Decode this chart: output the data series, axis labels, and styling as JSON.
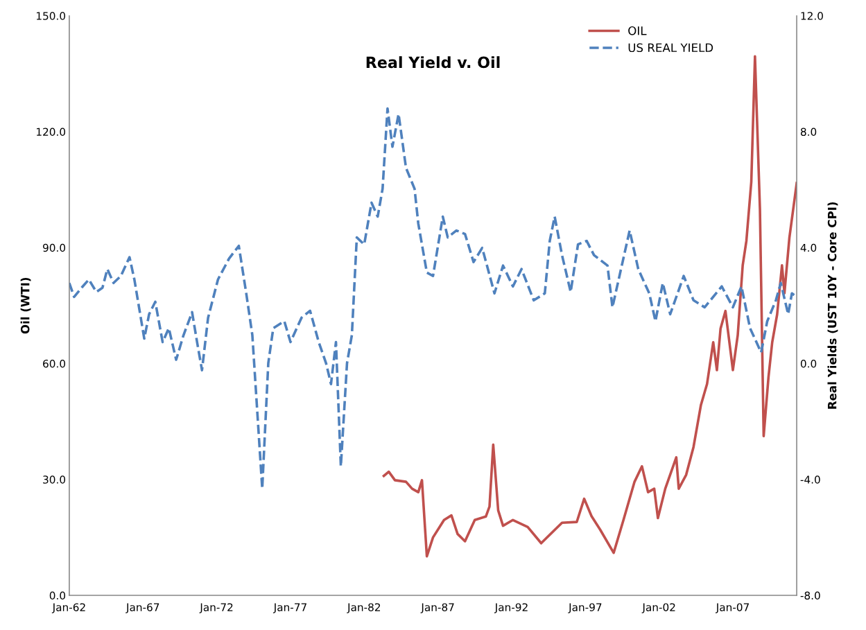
{
  "chart_data": {
    "type": "line",
    "title": "Real Yield v. Oil",
    "ylabel": "Oil (WTI)",
    "y2label": "Real Yields (UST 10Y - Core CPI)",
    "xlim": [
      "1962-01",
      "2011-05"
    ],
    "xticks": [
      {
        "value": "1962-01",
        "label": "Jan-62"
      },
      {
        "value": "1967-01",
        "label": "Jan-67"
      },
      {
        "value": "1972-01",
        "label": "Jan-72"
      },
      {
        "value": "1977-01",
        "label": "Jan-77"
      },
      {
        "value": "1982-01",
        "label": "Jan-82"
      },
      {
        "value": "1987-01",
        "label": "Jan-87"
      },
      {
        "value": "1992-01",
        "label": "Jan-92"
      },
      {
        "value": "1997-01",
        "label": "Jan-97"
      },
      {
        "value": "2002-01",
        "label": "Jan-02"
      },
      {
        "value": "2007-01",
        "label": "Jan-07"
      }
    ],
    "ylim": [
      0,
      150
    ],
    "yticks": [
      {
        "value": 0,
        "label": "0.0"
      },
      {
        "value": 30,
        "label": "30.0"
      },
      {
        "value": 60,
        "label": "60.0"
      },
      {
        "value": 90,
        "label": "90.0"
      },
      {
        "value": 120,
        "label": "120.0"
      },
      {
        "value": 150,
        "label": "150.0"
      }
    ],
    "y2lim": [
      -8,
      12
    ],
    "y2ticks": [
      {
        "value": -8,
        "label": "-8.0"
      },
      {
        "value": -4,
        "label": "-4.0"
      },
      {
        "value": 0,
        "label": "0.0"
      },
      {
        "value": 4,
        "label": "4.0"
      },
      {
        "value": 8,
        "label": "8.0"
      },
      {
        "value": 12,
        "label": "12.0"
      }
    ],
    "legend": "top right",
    "grid": false,
    "series": [
      {
        "name": "OIL",
        "color": "#c0504d",
        "line_style": "solid",
        "x": [
          "1983-05",
          "1983-09",
          "1984-02",
          "1984-11",
          "1985-04",
          "1985-09",
          "1985-12",
          "1986-04",
          "1986-09",
          "1987-06",
          "1987-12",
          "1988-05",
          "1988-11",
          "1989-07",
          "1990-04",
          "1990-07",
          "1990-10",
          "1991-02",
          "1991-06",
          "1992-02",
          "1993-02",
          "1994-01",
          "1995-06",
          "1996-06",
          "1996-12",
          "1997-06",
          "1998-01",
          "1998-12",
          "1999-08",
          "2000-05",
          "2000-11",
          "2001-04",
          "2001-09",
          "2001-12",
          "2002-06",
          "2003-03",
          "2003-05",
          "2003-11",
          "2004-05",
          "2004-11",
          "2005-04",
          "2005-09",
          "2005-12",
          "2006-03",
          "2006-07",
          "2007-01",
          "2007-05",
          "2007-09",
          "2007-12",
          "2008-04",
          "2008-07",
          "2008-11",
          "2009-02",
          "2009-06",
          "2009-09",
          "2010-01",
          "2010-05",
          "2010-07",
          "2010-11",
          "2011-05"
        ],
        "values": [
          30.9,
          32,
          29.8,
          29.4,
          27.6,
          26.7,
          29.8,
          10.1,
          15,
          19.5,
          20.7,
          15.9,
          14,
          19.5,
          20.4,
          23,
          39,
          22,
          18,
          19.5,
          17.7,
          13.5,
          18.8,
          19,
          25,
          20.5,
          17,
          11,
          19.5,
          29.4,
          33.4,
          26.7,
          27.6,
          20,
          27.6,
          35.7,
          27.6,
          31.2,
          38.4,
          49.3,
          54.7,
          65.5,
          58.3,
          69,
          73.6,
          58.3,
          67.3,
          85.4,
          91.7,
          107,
          139.5,
          100,
          41.2,
          56.5,
          65.5,
          72.7,
          85.4,
          78.2,
          92.6,
          106.7
        ]
      },
      {
        "name": "US REAL YIELD",
        "color": "#4f81bd",
        "line_style": "dashed",
        "axis": "y2",
        "x": [
          "1962-01",
          "1962-05",
          "1962-12",
          "1963-05",
          "1963-11",
          "1964-04",
          "1964-08",
          "1965-01",
          "1965-07",
          "1966-02",
          "1966-06",
          "1967-02",
          "1967-06",
          "1967-11",
          "1968-05",
          "1968-10",
          "1969-04",
          "1969-10",
          "1970-05",
          "1970-09",
          "1971-01",
          "1971-06",
          "1972-02",
          "1972-11",
          "1973-07",
          "1974-01",
          "1974-06",
          "1975-02",
          "1975-07",
          "1975-11",
          "1976-08",
          "1977-01",
          "1977-10",
          "1978-05",
          "1978-12",
          "1979-06",
          "1979-10",
          "1980-02",
          "1980-06",
          "1980-11",
          "1981-03",
          "1981-07",
          "1982-01",
          "1982-07",
          "1982-12",
          "1983-04",
          "1983-08",
          "1983-12",
          "1984-05",
          "1984-11",
          "1985-06",
          "1985-09",
          "1986-04",
          "1986-09",
          "1987-05",
          "1987-09",
          "1988-04",
          "1988-11",
          "1989-06",
          "1990-01",
          "1990-11",
          "1991-06",
          "1992-02",
          "1992-09",
          "1993-07",
          "1994-04",
          "1994-08",
          "1994-12",
          "1995-06",
          "1996-01",
          "1996-07",
          "1997-02",
          "1997-08",
          "1998-07",
          "1998-11",
          "1999-06",
          "2000-01",
          "2000-08",
          "2001-05",
          "2001-10",
          "2002-04",
          "2002-10",
          "2003-09",
          "2004-05",
          "2005-02",
          "2006-04",
          "2007-01",
          "2007-08",
          "2008-03",
          "2008-12",
          "2009-05",
          "2009-12",
          "2010-04",
          "2010-10",
          "2011-01",
          "2011-05"
        ],
        "values": [
          2.78,
          2.3,
          2.66,
          2.9,
          2.47,
          2.61,
          3.26,
          2.78,
          3.02,
          3.67,
          2.9,
          0.86,
          1.7,
          2.13,
          0.74,
          1.22,
          0.13,
          0.98,
          1.77,
          0.74,
          -0.23,
          1.58,
          2.9,
          3.62,
          4.06,
          2.42,
          0.98,
          -4.32,
          0.01,
          1.22,
          1.46,
          0.74,
          1.58,
          1.82,
          0.74,
          0.01,
          -0.71,
          0.74,
          -3.55,
          0.01,
          0.98,
          4.35,
          4.11,
          5.55,
          5.07,
          6.03,
          8.8,
          7.48,
          8.61,
          6.75,
          6.03,
          4.83,
          3.14,
          3.02,
          5.07,
          4.35,
          4.59,
          4.47,
          3.5,
          3.99,
          2.42,
          3.38,
          2.66,
          3.26,
          2.18,
          2.42,
          4.23,
          5.07,
          3.74,
          2.47,
          4.11,
          4.23,
          3.74,
          3.38,
          1.94,
          3.26,
          4.59,
          3.26,
          2.42,
          1.46,
          2.78,
          1.7,
          3.02,
          2.18,
          1.94,
          2.66,
          1.94,
          2.66,
          1.22,
          0.38,
          1.46,
          2.18,
          2.78,
          1.7,
          2.42,
          2.3
        ]
      }
    ]
  }
}
